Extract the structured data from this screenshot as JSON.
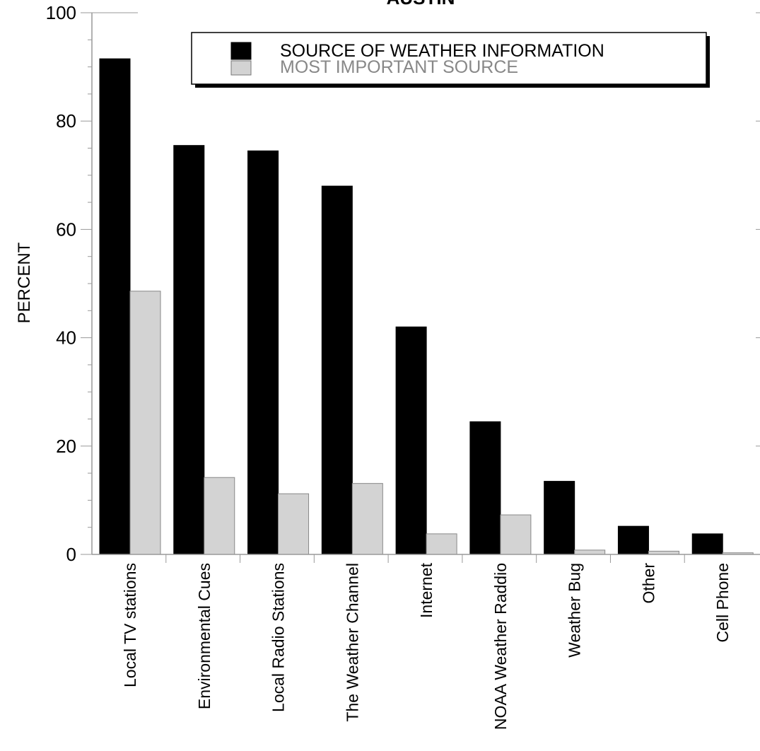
{
  "chart_data": {
    "type": "bar",
    "title": "AUSTIN",
    "ylabel": "PERCENT",
    "xlabel": "",
    "ylim": [
      0,
      100
    ],
    "yticks": [
      "0",
      "20",
      "40",
      "60",
      "80",
      "100"
    ],
    "categories": [
      "Local TV stations",
      "Environmental Cues",
      "Local Radio Stations",
      "The Weather Channel",
      "Internet",
      "NOAA Weather Raddio",
      "Weather Bug",
      "Other",
      "Cell Phone"
    ],
    "series": [
      {
        "name": "SOURCE OF WEATHER INFORMATION",
        "color": "#000000",
        "values": [
          91.5,
          75.5,
          74.5,
          68,
          42,
          24.5,
          13.5,
          5.2,
          3.8
        ]
      },
      {
        "name": "MOST IMPORTANT SOURCE",
        "color": "#d3d3d3",
        "values": [
          48.6,
          14.2,
          11.2,
          13.1,
          3.8,
          7.3,
          0.8,
          0.6,
          0.3
        ]
      }
    ],
    "legend_position": "top-right",
    "grid": false
  }
}
